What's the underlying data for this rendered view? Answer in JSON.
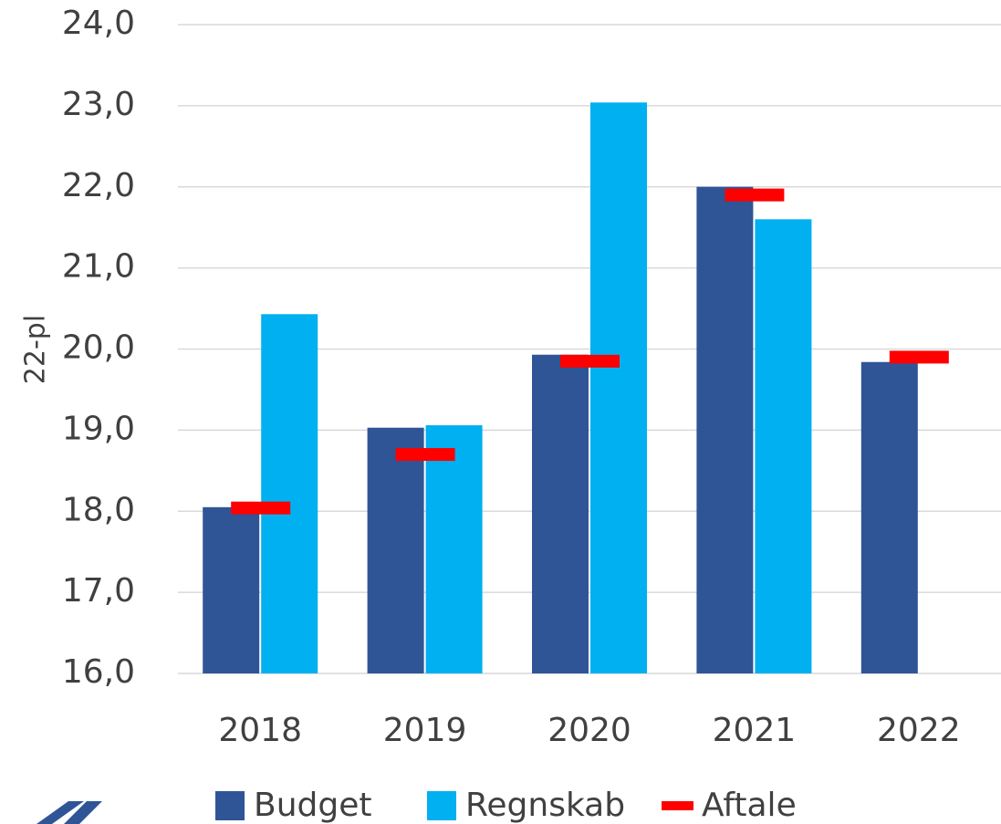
{
  "chart_data": {
    "type": "bar",
    "ylabel": "22-pl",
    "categories": [
      "2018",
      "2019",
      "2020",
      "2021",
      "2022"
    ],
    "series": [
      {
        "name": "Budget",
        "color": "#2f5597",
        "kind": "bar",
        "values": [
          18.05,
          19.03,
          19.93,
          22.0,
          19.84
        ]
      },
      {
        "name": "Regnskab",
        "color": "#00b0f0",
        "kind": "bar",
        "values": [
          20.43,
          19.06,
          23.04,
          21.6,
          null
        ]
      },
      {
        "name": "Aftale",
        "color": "#ff0000",
        "kind": "dash",
        "values": [
          18.04,
          18.7,
          19.85,
          21.9,
          19.9
        ]
      }
    ],
    "ylim": [
      16,
      24
    ],
    "yticks": [
      {
        "value": 16,
        "label": "16,0"
      },
      {
        "value": 17,
        "label": "17,0"
      },
      {
        "value": 18,
        "label": "18,0"
      },
      {
        "value": 19,
        "label": "19,0"
      },
      {
        "value": 20,
        "label": "20,0"
      },
      {
        "value": 21,
        "label": "21,0"
      },
      {
        "value": 22,
        "label": "22,0"
      },
      {
        "value": 23,
        "label": "23,0"
      },
      {
        "value": 24,
        "label": "24,0"
      }
    ],
    "grid": true,
    "legend": "bottom"
  }
}
